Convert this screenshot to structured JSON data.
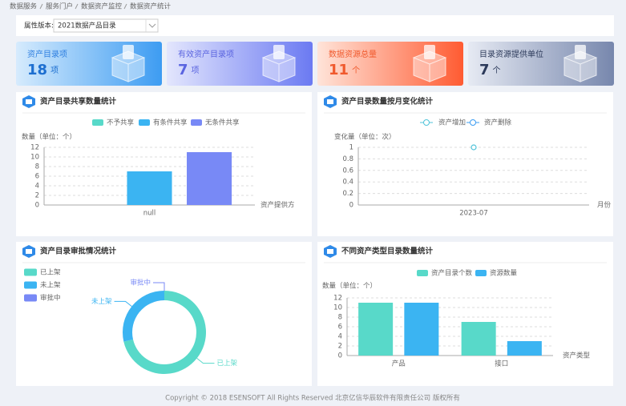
{
  "breadcrumb": [
    "数据服务",
    "服务门户",
    "数据资产监控",
    "数据资产统计"
  ],
  "filter": {
    "label": "属性版本:",
    "value": "2021数据产品目录"
  },
  "cards": [
    {
      "label": "资产目录项",
      "value": 18,
      "unit": "项"
    },
    {
      "label": "有效资产目录项",
      "value": 7,
      "unit": "项"
    },
    {
      "label": "数据资源总量",
      "value": 11,
      "unit": "个"
    },
    {
      "label": "目录资源提供单位",
      "value": 7,
      "unit": "个"
    }
  ],
  "chart_data": [
    {
      "type": "bar",
      "title": "资产目录共享数量统计",
      "y_label": "数量（单位：个）",
      "x_label": "资产提供方",
      "categories": [
        "null"
      ],
      "series": [
        {
          "name": "不予共享",
          "color": "#58d9c9",
          "values": [
            0
          ]
        },
        {
          "name": "有条件共享",
          "color": "#3bb4f2",
          "values": [
            7
          ]
        },
        {
          "name": "无条件共享",
          "color": "#7889f6",
          "values": [
            11
          ]
        }
      ],
      "ylim": [
        0,
        12
      ],
      "yticks": [
        0,
        2,
        4,
        6,
        8,
        10,
        12
      ],
      "grid": true
    },
    {
      "type": "line",
      "title": "资产目录数量按月变化统计",
      "y_label": "变化量（单位：次）",
      "x_label": "月份",
      "categories": [
        "2023-07"
      ],
      "series": [
        {
          "name": "资产增加",
          "color": "#4fc3d9",
          "values": [
            1
          ]
        },
        {
          "name": "资产删除",
          "color": "#3b9cf2",
          "values": [
            null
          ]
        }
      ],
      "ylim": [
        0,
        1
      ],
      "yticks": [
        0,
        0.2,
        0.4,
        0.6,
        0.8,
        1
      ],
      "grid": true
    },
    {
      "type": "pie",
      "title": "资产目录审批情况统计",
      "categories": [
        "已上架",
        "未上架",
        "审批中"
      ],
      "values": [
        5,
        2,
        0
      ],
      "colors": [
        "#58d9c9",
        "#3bb4f2",
        "#7889f6"
      ]
    },
    {
      "type": "bar",
      "title": "不同资产类型目录数量统计",
      "y_label": "数量（单位：个）",
      "x_label": "资产类型",
      "categories": [
        "产品",
        "接口"
      ],
      "series": [
        {
          "name": "资产目录个数",
          "color": "#58d9c9",
          "values": [
            11,
            7
          ]
        },
        {
          "name": "资源数量",
          "color": "#3bb4f2",
          "values": [
            11,
            3
          ]
        }
      ],
      "ylim": [
        0,
        12
      ],
      "yticks": [
        0,
        2,
        4,
        6,
        8,
        10,
        12
      ],
      "grid": true
    }
  ],
  "footer": "Copyright © 2018 ESENSOFT All Rights Reserved 北京亿信华辰软件有限责任公司 版权所有"
}
